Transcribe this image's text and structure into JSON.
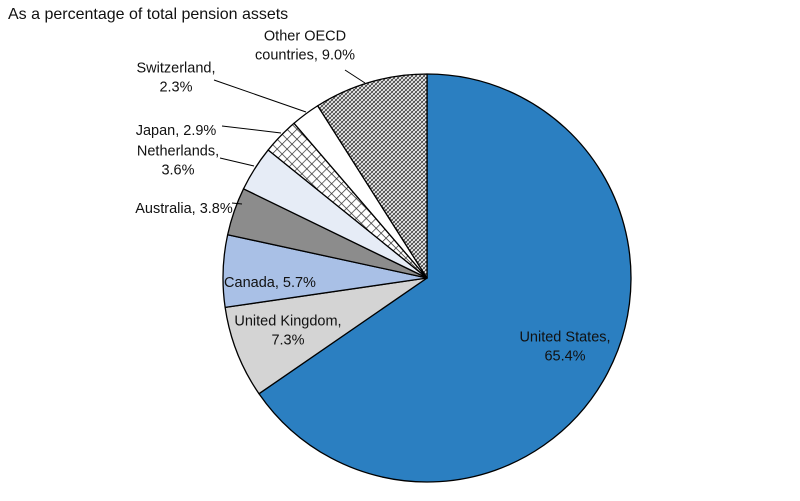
{
  "chart_data": {
    "type": "pie",
    "subtitle": "As a percentage of total pension assets",
    "slices": [
      {
        "label_lines": [
          "United States,",
          "65.4%"
        ],
        "name": "United States",
        "value": 65.4,
        "color": "#2b7fc1",
        "pattern": null
      },
      {
        "label_lines": [
          "United Kingdom,",
          "7.3%"
        ],
        "name": "United Kingdom",
        "value": 7.3,
        "color": "#d4d4d4",
        "pattern": null
      },
      {
        "label_lines": [
          "Canada, 5.7%"
        ],
        "name": "Canada",
        "value": 5.7,
        "color": "#a9c0e6",
        "pattern": null
      },
      {
        "label_lines": [
          "Australia, 3.8%"
        ],
        "name": "Australia",
        "value": 3.8,
        "color": "#8c8c8c",
        "pattern": null
      },
      {
        "label_lines": [
          "Netherlands,",
          "3.6%"
        ],
        "name": "Netherlands",
        "value": 3.6,
        "color": "#e6ecf6",
        "pattern": null
      },
      {
        "label_lines": [
          "Japan, 2.9%"
        ],
        "name": "Japan",
        "value": 2.9,
        "color": "#ffffff",
        "pattern": "grid"
      },
      {
        "label_lines": [
          "Switzerland,",
          "2.3%"
        ],
        "name": "Switzerland",
        "value": 2.3,
        "color": "#ffffff",
        "pattern": null
      },
      {
        "label_lines": [
          "Other OECD",
          "countries, 9.0%"
        ],
        "name": "Other OECD countries",
        "value": 9.0,
        "color": "#ffffff",
        "pattern": "crosshatch"
      }
    ],
    "start": "12 o'clock",
    "direction": "clockwise",
    "legend": "none"
  }
}
